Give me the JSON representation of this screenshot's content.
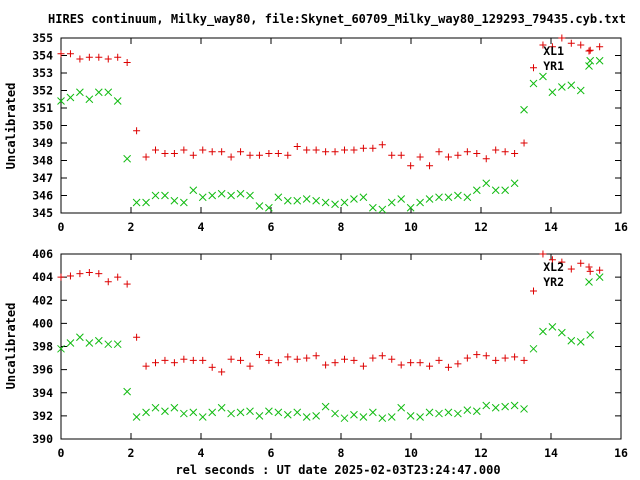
{
  "title": "HIRES continuum, Milky_way80, file:Skynet_60709_Milky_way80_129293_79435.cyb.txt",
  "xlabel": "rel seconds : UT date 2025-02-03T23:24:47.000",
  "colors": {
    "red": "#dd0000",
    "green": "#11bb11",
    "axis": "#000000"
  },
  "chart_data": [
    {
      "type": "scatter",
      "ylabel": "Uncalibrated",
      "xlim": [
        0,
        16
      ],
      "ylim": [
        345,
        355
      ],
      "xticks": [
        0,
        2,
        4,
        6,
        8,
        10,
        12,
        14,
        16
      ],
      "yticks": [
        345,
        346,
        347,
        348,
        349,
        350,
        351,
        352,
        353,
        354,
        355
      ],
      "legend_position": "top-right",
      "series": [
        {
          "name": "XL1",
          "color": "#dd0000",
          "marker": "plus",
          "x": [
            0.0,
            0.27,
            0.54,
            0.81,
            1.08,
            1.35,
            1.62,
            1.89,
            2.16,
            2.43,
            2.7,
            2.97,
            3.24,
            3.51,
            3.78,
            4.05,
            4.32,
            4.59,
            4.86,
            5.13,
            5.4,
            5.67,
            5.94,
            6.21,
            6.48,
            6.75,
            7.02,
            7.29,
            7.56,
            7.83,
            8.1,
            8.37,
            8.64,
            8.91,
            9.18,
            9.45,
            9.72,
            9.99,
            10.26,
            10.53,
            10.8,
            11.07,
            11.34,
            11.61,
            11.88,
            12.15,
            12.42,
            12.69,
            12.96,
            13.23,
            13.5,
            13.77,
            14.04,
            14.31,
            14.58,
            14.85,
            15.12,
            15.39
          ],
          "y": [
            354.1,
            354.1,
            353.8,
            353.9,
            353.9,
            353.8,
            353.9,
            353.6,
            349.7,
            348.2,
            348.6,
            348.4,
            348.4,
            348.6,
            348.3,
            348.6,
            348.5,
            348.5,
            348.2,
            348.5,
            348.3,
            348.3,
            348.4,
            348.4,
            348.3,
            348.8,
            348.6,
            348.6,
            348.5,
            348.5,
            348.6,
            348.6,
            348.7,
            348.7,
            348.9,
            348.3,
            348.3,
            347.7,
            348.2,
            347.7,
            348.5,
            348.2,
            348.3,
            348.5,
            348.4,
            348.1,
            348.6,
            348.5,
            348.4,
            349.0,
            353.3,
            354.6,
            354.5,
            355.0,
            354.7,
            354.6,
            354.3,
            354.5
          ]
        },
        {
          "name": "YR1",
          "color": "#11bb11",
          "marker": "cross",
          "x": [
            0.0,
            0.27,
            0.54,
            0.81,
            1.08,
            1.35,
            1.62,
            1.89,
            2.16,
            2.43,
            2.7,
            2.97,
            3.24,
            3.51,
            3.78,
            4.05,
            4.32,
            4.59,
            4.86,
            5.13,
            5.4,
            5.67,
            5.94,
            6.21,
            6.48,
            6.75,
            7.02,
            7.29,
            7.56,
            7.83,
            8.1,
            8.37,
            8.64,
            8.91,
            9.18,
            9.45,
            9.72,
            9.99,
            10.26,
            10.53,
            10.8,
            11.07,
            11.34,
            11.61,
            11.88,
            12.15,
            12.42,
            12.69,
            12.96,
            13.23,
            13.5,
            13.77,
            14.04,
            14.31,
            14.58,
            14.85,
            15.12,
            15.39
          ],
          "y": [
            351.4,
            351.6,
            351.9,
            351.5,
            351.9,
            351.9,
            351.4,
            348.1,
            345.6,
            345.6,
            346.0,
            346.0,
            345.7,
            345.6,
            346.3,
            345.9,
            346.0,
            346.1,
            346.0,
            346.1,
            346.0,
            345.4,
            345.3,
            345.9,
            345.7,
            345.7,
            345.8,
            345.7,
            345.6,
            345.5,
            345.6,
            345.8,
            345.9,
            345.3,
            345.2,
            345.6,
            345.8,
            345.3,
            345.6,
            345.8,
            345.9,
            345.9,
            346.0,
            345.9,
            346.3,
            346.7,
            346.3,
            346.3,
            346.7,
            350.9,
            352.4,
            352.8,
            351.9,
            352.2,
            352.3,
            352.0,
            353.7,
            353.7
          ]
        }
      ]
    },
    {
      "type": "scatter",
      "ylabel": "Uncalibrated",
      "xlim": [
        0,
        16
      ],
      "ylim": [
        390,
        406
      ],
      "xticks": [
        0,
        2,
        4,
        6,
        8,
        10,
        12,
        14,
        16
      ],
      "yticks": [
        390,
        392,
        394,
        396,
        398,
        400,
        402,
        404,
        406
      ],
      "legend_position": "top-right",
      "series": [
        {
          "name": "XL2",
          "color": "#dd0000",
          "marker": "plus",
          "x": [
            0.0,
            0.27,
            0.54,
            0.81,
            1.08,
            1.35,
            1.62,
            1.89,
            2.16,
            2.43,
            2.7,
            2.97,
            3.24,
            3.51,
            3.78,
            4.05,
            4.32,
            4.59,
            4.86,
            5.13,
            5.4,
            5.67,
            5.94,
            6.21,
            6.48,
            6.75,
            7.02,
            7.29,
            7.56,
            7.83,
            8.1,
            8.37,
            8.64,
            8.91,
            9.18,
            9.45,
            9.72,
            9.99,
            10.26,
            10.53,
            10.8,
            11.07,
            11.34,
            11.61,
            11.88,
            12.15,
            12.42,
            12.69,
            12.96,
            13.23,
            13.5,
            13.77,
            14.04,
            14.31,
            14.58,
            14.85,
            15.12,
            15.39
          ],
          "y": [
            404.0,
            404.1,
            404.3,
            404.4,
            404.3,
            403.6,
            404.0,
            403.4,
            398.8,
            396.3,
            396.6,
            396.8,
            396.6,
            396.9,
            396.8,
            396.8,
            396.2,
            395.8,
            396.9,
            396.8,
            396.3,
            397.3,
            396.8,
            396.6,
            397.1,
            396.9,
            397.0,
            397.2,
            396.4,
            396.6,
            396.9,
            396.8,
            396.3,
            397.0,
            397.2,
            396.9,
            396.4,
            396.6,
            396.6,
            396.3,
            396.8,
            396.2,
            396.5,
            397.0,
            397.3,
            397.2,
            396.8,
            397.0,
            397.1,
            396.8,
            402.8,
            406.0,
            405.5,
            405.3,
            404.7,
            405.2,
            404.5,
            404.6
          ]
        },
        {
          "name": "YR2",
          "color": "#11bb11",
          "marker": "cross",
          "x": [
            0.0,
            0.27,
            0.54,
            0.81,
            1.08,
            1.35,
            1.62,
            1.89,
            2.16,
            2.43,
            2.7,
            2.97,
            3.24,
            3.51,
            3.78,
            4.05,
            4.32,
            4.59,
            4.86,
            5.13,
            5.4,
            5.67,
            5.94,
            6.21,
            6.48,
            6.75,
            7.02,
            7.29,
            7.56,
            7.83,
            8.1,
            8.37,
            8.64,
            8.91,
            9.18,
            9.45,
            9.72,
            9.99,
            10.26,
            10.53,
            10.8,
            11.07,
            11.34,
            11.61,
            11.88,
            12.15,
            12.42,
            12.69,
            12.96,
            13.23,
            13.5,
            13.77,
            14.04,
            14.31,
            14.58,
            14.85,
            15.12,
            15.39
          ],
          "y": [
            397.8,
            398.3,
            398.8,
            398.3,
            398.5,
            398.2,
            398.2,
            394.1,
            391.9,
            392.3,
            392.7,
            392.4,
            392.7,
            392.2,
            392.3,
            391.9,
            392.3,
            392.7,
            392.2,
            392.3,
            392.4,
            392.0,
            392.4,
            392.3,
            392.1,
            392.3,
            391.9,
            392.0,
            392.8,
            392.2,
            391.8,
            392.1,
            391.9,
            392.3,
            391.8,
            391.9,
            392.7,
            392.0,
            391.9,
            392.3,
            392.2,
            392.3,
            392.2,
            392.5,
            392.4,
            392.9,
            392.7,
            392.8,
            392.9,
            392.6,
            397.8,
            399.3,
            399.7,
            399.2,
            398.5,
            398.4,
            399.0,
            404.0
          ]
        }
      ]
    }
  ]
}
